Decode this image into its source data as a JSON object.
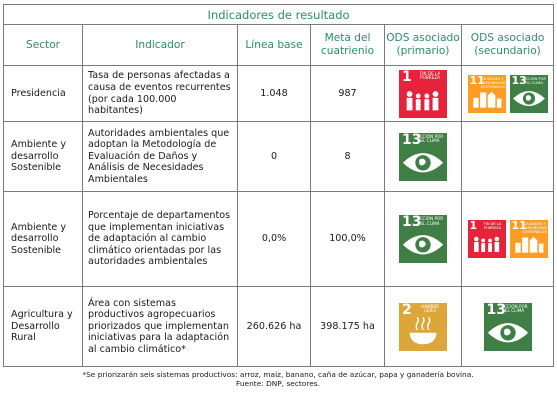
{
  "table_title": "Indicadores de resultado",
  "headers": {
    "sector": "Sector",
    "indicador": "Indicador",
    "linea_base": "Línea base",
    "meta": "Meta del cuatrienio",
    "ods_primario": "ODS asociado (primario)",
    "ods_secundario": "ODS asociado (secundario)"
  },
  "rows": [
    {
      "sector": "Presidencia",
      "indicador": "Tasa de personas afectadas a causa de eventos recurrentes (por cada 100.000 habitantes)",
      "linea_base": "1.048",
      "meta": "987",
      "ods_primario": [
        {
          "number": "1",
          "label": "FIN DE LA POBREZA",
          "icon": "family-icon",
          "color": "#e5243b"
        }
      ],
      "ods_secundario": [
        {
          "number": "11",
          "label": "CIUDADES Y COMUNIDADES SOSTENIBLES",
          "icon": "city-icon",
          "color": "#fd9d24"
        },
        {
          "number": "13",
          "label": "ACCIÓN POR EL CLIMA",
          "icon": "eye-earth-icon",
          "color": "#3f7e44"
        }
      ]
    },
    {
      "sector": "Ambiente y desarrollo Sostenible",
      "indicador": "Autoridades ambientales que adoptan la Metodología de Evaluación de Daños y Análisis de Necesidades Ambientales",
      "linea_base": "0",
      "meta": "8",
      "ods_primario": [
        {
          "number": "13",
          "label": "ACCIÓN POR EL CLIMA",
          "icon": "eye-earth-icon",
          "color": "#3f7e44"
        }
      ],
      "ods_secundario": []
    },
    {
      "sector": "Ambiente y desarrollo Sostenible",
      "indicador": "Porcentaje de departamentos que implementan iniciativas de adaptación al cambio climático orientadas por las autoridades ambientales",
      "linea_base": "0,0%",
      "meta": "100,0%",
      "ods_primario": [
        {
          "number": "13",
          "label": "ACCIÓN POR EL CLIMA",
          "icon": "eye-earth-icon",
          "color": "#3f7e44"
        }
      ],
      "ods_secundario": [
        {
          "number": "1",
          "label": "FIN DE LA POBREZA",
          "icon": "family-icon",
          "color": "#e5243b"
        },
        {
          "number": "11",
          "label": "CIUDADES Y COMUNIDADES SOSTENIBLES",
          "icon": "city-icon",
          "color": "#fd9d24"
        }
      ]
    },
    {
      "sector": "Agricultura y Desarrollo Rural",
      "indicador": "Área con sistemas productivos agropecuarios priorizados que implementan iniciativas para la adaptación al cambio climático*",
      "linea_base": "260.626 ha",
      "meta": "398.175 ha",
      "ods_primario": [
        {
          "number": "2",
          "label": "HAMBRE CERO",
          "icon": "bowl-icon",
          "color": "#dda63a"
        }
      ],
      "ods_secundario": [
        {
          "number": "13",
          "label": "ACCIÓN POR EL CLIMA",
          "icon": "eye-earth-icon",
          "color": "#3f7e44"
        }
      ]
    }
  ],
  "footnote": "*Se priorizarán seis sistemas productivos: arroz, maíz, banano, caña de azúcar, papa y ganadería bovina.",
  "source": "Fuente: DNP, sectores."
}
